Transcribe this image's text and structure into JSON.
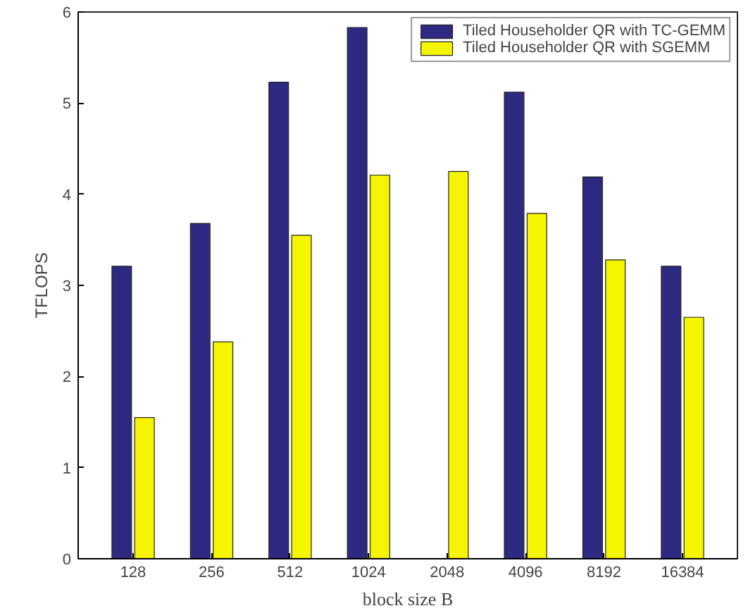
{
  "chart_data": {
    "type": "bar",
    "xlabel": "block size B",
    "ylabel": "TFLOPS",
    "categories": [
      "128",
      "256",
      "512",
      "1024",
      "2048",
      "4096",
      "8192",
      "16384"
    ],
    "series": [
      {
        "name": "Tiled Householder QR with TC-GEMM",
        "color": "#2e2a82",
        "values": [
          3.21,
          3.68,
          5.23,
          5.83,
          null,
          5.12,
          4.19,
          3.21
        ]
      },
      {
        "name": "Tiled Householder QR with SGEMM",
        "color": "#f5f500",
        "values": [
          1.55,
          2.38,
          3.55,
          4.21,
          4.25,
          3.79,
          3.28,
          2.65
        ]
      }
    ],
    "ylim": [
      0,
      6
    ],
    "yticks": [
      0,
      1,
      2,
      3,
      4,
      5,
      6
    ],
    "grid": false,
    "legend": "top right"
  }
}
